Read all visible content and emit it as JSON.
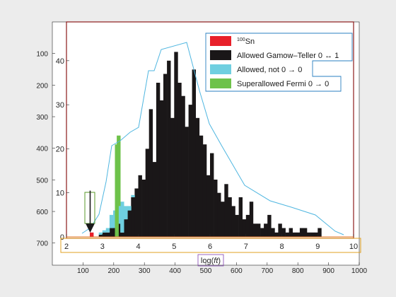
{
  "chart_data": {
    "type": "bar",
    "stacked": true,
    "bin_width": 0.1,
    "xlabel": "log(ft)",
    "xlabel_main": "log(",
    "xlabel_italic": "ft",
    "xlabel_close": ")",
    "xlim": [
      2,
      10
    ],
    "ylim": [
      0,
      48
    ],
    "x_ticks": [
      "2",
      "3",
      "4",
      "5",
      "6",
      "7",
      "8",
      "9",
      "10"
    ],
    "y_ticks": [
      "0",
      "10",
      "20",
      "30",
      "40"
    ],
    "secondary_x_ticks": [
      "100",
      "200",
      "300",
      "400",
      "500",
      "600",
      "700",
      "800",
      "900",
      "1000"
    ],
    "secondary_y_ticks": [
      "100",
      "200",
      "300",
      "400",
      "500",
      "600",
      "700"
    ],
    "legend_position": "top-right",
    "series": [
      {
        "name": "Allowed Gamow–Teller 0 ↔ 1",
        "color": "#1a1718",
        "bars": [
          [
            2.9,
            0.5
          ],
          [
            3.0,
            1
          ],
          [
            3.1,
            1
          ],
          [
            3.2,
            2
          ],
          [
            3.3,
            2
          ],
          [
            3.4,
            3
          ],
          [
            3.5,
            1
          ],
          [
            3.6,
            4
          ],
          [
            3.7,
            6
          ],
          [
            3.8,
            9
          ],
          [
            3.9,
            11
          ],
          [
            4.0,
            14
          ],
          [
            4.1,
            13
          ],
          [
            4.2,
            20
          ],
          [
            4.3,
            29
          ],
          [
            4.4,
            17
          ],
          [
            4.5,
            35
          ],
          [
            4.6,
            31
          ],
          [
            4.7,
            37
          ],
          [
            4.8,
            40
          ],
          [
            4.9,
            27
          ],
          [
            5.0,
            42
          ],
          [
            5.1,
            35
          ],
          [
            5.2,
            32
          ],
          [
            5.3,
            25
          ],
          [
            5.4,
            30
          ],
          [
            5.5,
            38
          ],
          [
            5.6,
            27
          ],
          [
            5.7,
            23
          ],
          [
            5.8,
            21
          ],
          [
            5.9,
            14
          ],
          [
            6.0,
            19
          ],
          [
            6.1,
            13
          ],
          [
            6.2,
            10
          ],
          [
            6.3,
            8
          ],
          [
            6.4,
            12
          ],
          [
            6.5,
            9
          ],
          [
            6.6,
            7
          ],
          [
            6.7,
            5
          ],
          [
            6.8,
            9
          ],
          [
            6.9,
            4
          ],
          [
            7.0,
            5
          ],
          [
            7.1,
            8
          ],
          [
            7.2,
            3
          ],
          [
            7.3,
            3
          ],
          [
            7.4,
            2
          ],
          [
            7.5,
            3
          ],
          [
            7.6,
            5
          ],
          [
            7.7,
            2
          ],
          [
            7.8,
            1
          ],
          [
            7.9,
            3
          ],
          [
            8.0,
            2
          ],
          [
            8.1,
            1
          ],
          [
            8.2,
            2
          ],
          [
            8.3,
            1
          ],
          [
            8.4,
            1
          ],
          [
            8.5,
            2
          ],
          [
            8.6,
            2
          ],
          [
            8.7,
            1
          ],
          [
            8.8,
            1
          ],
          [
            8.9,
            1
          ],
          [
            9.0,
            2
          ]
        ]
      },
      {
        "name": "Allowed, not 0 → 0",
        "color": "#6fcfe0",
        "bars": [
          [
            2.9,
            0.5
          ],
          [
            3.0,
            0.5
          ],
          [
            3.1,
            1
          ],
          [
            3.2,
            3
          ],
          [
            3.3,
            4
          ],
          [
            3.4,
            4
          ],
          [
            3.5,
            7
          ],
          [
            3.6,
            3
          ],
          [
            3.7,
            1
          ],
          [
            3.8,
            0.5
          ]
        ]
      },
      {
        "name": "Superallowed Fermi 0 → 0",
        "color": "#6ec24a",
        "bars": [
          [
            3.35,
            21
          ],
          [
            3.4,
            16
          ]
        ]
      },
      {
        "name": "100Sn",
        "name_superscript": "100",
        "name_base": "Sn",
        "color": "#e8202a",
        "bars": [
          [
            2.65,
            1
          ]
        ]
      }
    ],
    "annotation": {
      "type": "arrow-down",
      "x": 2.65,
      "from_y": 10.5,
      "to_y": 2
    }
  }
}
